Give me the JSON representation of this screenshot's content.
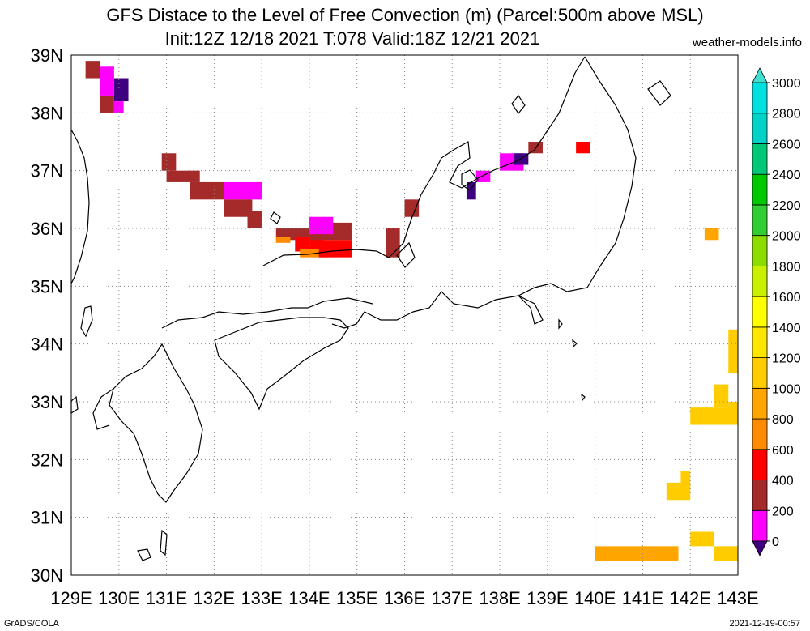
{
  "title": {
    "line1": "GFS Distace to the Level of Free Convection (m) (Parcel:500m above MSL)",
    "line2": "Init:12Z 12/18 2021 T:078 Valid:18Z 12/21 2021"
  },
  "credit": "weather-models.info",
  "footer": {
    "left": "GrADS/COLA",
    "right": "2021-12-19-00:57"
  },
  "map": {
    "lon_labels": [
      "129E",
      "130E",
      "131E",
      "132E",
      "133E",
      "134E",
      "135E",
      "136E",
      "137E",
      "138E",
      "139E",
      "140E",
      "141E",
      "142E",
      "143E"
    ],
    "lat_labels": [
      "30N",
      "31N",
      "32N",
      "33N",
      "34N",
      "35N",
      "36N",
      "37N",
      "38N",
      "39N"
    ],
    "lon_range": [
      129,
      143
    ],
    "lat_range": [
      30,
      39
    ],
    "grid": true
  },
  "colorbar": {
    "labels": [
      "0",
      "200",
      "400",
      "600",
      "800",
      "1000",
      "1200",
      "1400",
      "1600",
      "1800",
      "2000",
      "2200",
      "2400",
      "2600",
      "2800",
      "3000"
    ],
    "colors": [
      "#3f007f",
      "#ff00ff",
      "#a52a2a",
      "#ff0000",
      "#ff8c00",
      "#ffa500",
      "#ffcc00",
      "#ffe600",
      "#ffff00",
      "#c8f000",
      "#8cdc00",
      "#32cd32",
      "#00c800",
      "#00c878",
      "#00d2c8",
      "#00e0e0",
      "#40e0d0"
    ]
  },
  "fields": {
    "cells": [
      {
        "lon": 129.3,
        "lat": 38.6,
        "w": 0.3,
        "h": 0.3,
        "c": "#a52a2a"
      },
      {
        "lon": 129.6,
        "lat": 38.3,
        "w": 0.3,
        "h": 0.5,
        "c": "#ff00ff"
      },
      {
        "lon": 129.9,
        "lat": 38.2,
        "w": 0.3,
        "h": 0.4,
        "c": "#3f007f"
      },
      {
        "lon": 129.6,
        "lat": 38.0,
        "w": 0.3,
        "h": 0.3,
        "c": "#a52a2a"
      },
      {
        "lon": 129.9,
        "lat": 38.0,
        "w": 0.2,
        "h": 0.2,
        "c": "#ff00ff"
      },
      {
        "lon": 130.9,
        "lat": 37.0,
        "w": 0.3,
        "h": 0.3,
        "c": "#a52a2a"
      },
      {
        "lon": 131.0,
        "lat": 36.8,
        "w": 0.7,
        "h": 0.2,
        "c": "#a52a2a"
      },
      {
        "lon": 131.5,
        "lat": 36.5,
        "w": 0.7,
        "h": 0.3,
        "c": "#a52a2a"
      },
      {
        "lon": 132.2,
        "lat": 36.5,
        "w": 0.8,
        "h": 0.3,
        "c": "#ff00ff"
      },
      {
        "lon": 132.2,
        "lat": 36.2,
        "w": 0.6,
        "h": 0.3,
        "c": "#a52a2a"
      },
      {
        "lon": 132.7,
        "lat": 36.0,
        "w": 0.3,
        "h": 0.3,
        "c": "#a52a2a"
      },
      {
        "lon": 133.3,
        "lat": 35.8,
        "w": 0.8,
        "h": 0.2,
        "c": "#a52a2a"
      },
      {
        "lon": 133.3,
        "lat": 35.75,
        "w": 0.3,
        "h": 0.1,
        "c": "#ff8c00"
      },
      {
        "lon": 133.7,
        "lat": 35.6,
        "w": 0.6,
        "h": 0.25,
        "c": "#ff0000"
      },
      {
        "lon": 133.8,
        "lat": 35.5,
        "w": 0.6,
        "h": 0.15,
        "c": "#ff8c00"
      },
      {
        "lon": 134.0,
        "lat": 35.8,
        "w": 0.9,
        "h": 0.3,
        "c": "#a52a2a"
      },
      {
        "lon": 134.2,
        "lat": 35.5,
        "w": 0.7,
        "h": 0.3,
        "c": "#ff0000"
      },
      {
        "lon": 134.0,
        "lat": 35.9,
        "w": 0.5,
        "h": 0.3,
        "c": "#ff00ff"
      },
      {
        "lon": 135.6,
        "lat": 35.5,
        "w": 0.3,
        "h": 0.5,
        "c": "#a52a2a"
      },
      {
        "lon": 136.0,
        "lat": 36.2,
        "w": 0.3,
        "h": 0.3,
        "c": "#a52a2a"
      },
      {
        "lon": 137.3,
        "lat": 36.5,
        "w": 0.2,
        "h": 0.3,
        "c": "#3f007f"
      },
      {
        "lon": 137.5,
        "lat": 36.8,
        "w": 0.3,
        "h": 0.2,
        "c": "#ff00ff"
      },
      {
        "lon": 138.0,
        "lat": 37.0,
        "w": 0.5,
        "h": 0.3,
        "c": "#ff00ff"
      },
      {
        "lon": 138.3,
        "lat": 37.1,
        "w": 0.3,
        "h": 0.2,
        "c": "#3f007f"
      },
      {
        "lon": 138.6,
        "lat": 37.3,
        "w": 0.3,
        "h": 0.2,
        "c": "#a52a2a"
      },
      {
        "lon": 139.6,
        "lat": 37.3,
        "w": 0.3,
        "h": 0.2,
        "c": "#ff0000"
      },
      {
        "lon": 142.3,
        "lat": 35.8,
        "w": 0.3,
        "h": 0.2,
        "c": "#ffa500"
      },
      {
        "lon": 142.8,
        "lat": 33.5,
        "w": 0.2,
        "h": 0.75,
        "c": "#ffcc00"
      },
      {
        "lon": 142.5,
        "lat": 32.9,
        "w": 0.3,
        "h": 0.4,
        "c": "#ffcc00"
      },
      {
        "lon": 142.0,
        "lat": 32.6,
        "w": 1.0,
        "h": 0.3,
        "c": "#ffcc00"
      },
      {
        "lon": 142.8,
        "lat": 32.8,
        "w": 0.2,
        "h": 0.2,
        "c": "#ffcc00"
      },
      {
        "lon": 141.5,
        "lat": 31.3,
        "w": 0.5,
        "h": 0.3,
        "c": "#ffcc00"
      },
      {
        "lon": 141.8,
        "lat": 31.5,
        "w": 0.2,
        "h": 0.3,
        "c": "#ffcc00"
      },
      {
        "lon": 142.0,
        "lat": 30.5,
        "w": 0.5,
        "h": 0.25,
        "c": "#ffcc00"
      },
      {
        "lon": 140.0,
        "lat": 30.25,
        "w": 1.75,
        "h": 0.25,
        "c": "#ffa500"
      },
      {
        "lon": 142.5,
        "lat": 30.25,
        "w": 0.5,
        "h": 0.25,
        "c": "#ffcc00"
      }
    ]
  }
}
